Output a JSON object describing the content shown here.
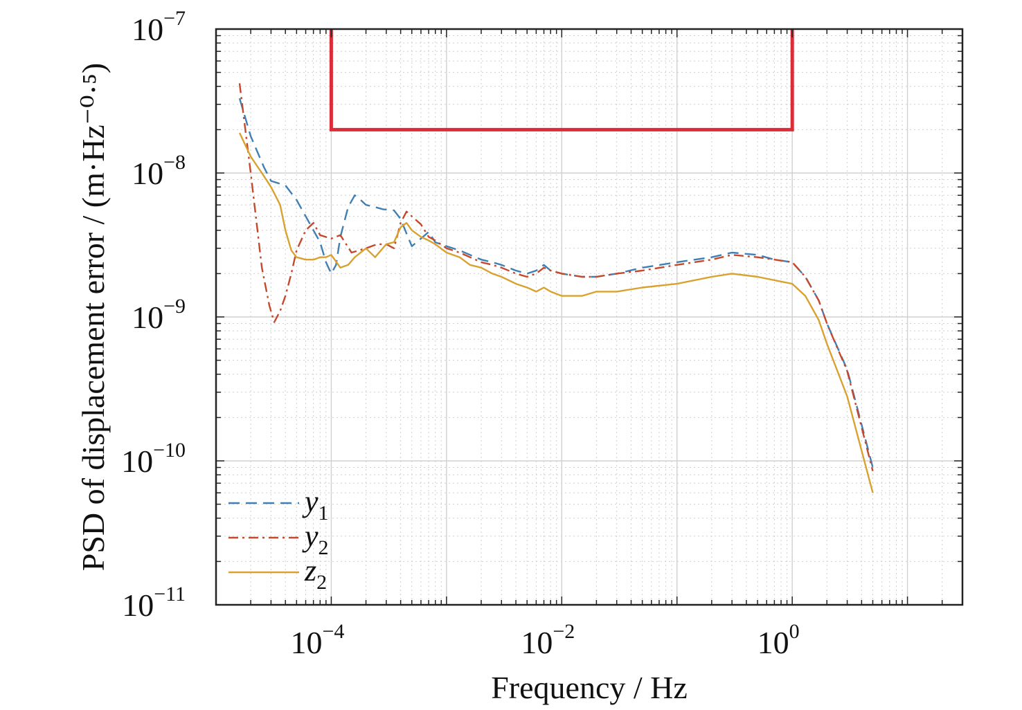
{
  "chart_data": {
    "type": "line",
    "xlabel": "Frequency / Hz",
    "ylabel": "PSD of displacement error / (m·Hz⁻⁰·⁵)",
    "xscale": "log",
    "yscale": "log",
    "xlim": [
      1e-05,
      30
    ],
    "ylim": [
      1e-11,
      1e-07
    ],
    "grid": true,
    "x_ticks": [
      {
        "value": 0.0001,
        "base": "10",
        "exp": "−4"
      },
      {
        "value": 0.01,
        "base": "10",
        "exp": "−2"
      },
      {
        "value": 1,
        "base": "10",
        "exp": "0"
      }
    ],
    "y_ticks": [
      {
        "value": 1e-07,
        "base": "10",
        "exp": "−7"
      },
      {
        "value": 1e-08,
        "base": "10",
        "exp": "−8"
      },
      {
        "value": 1e-09,
        "base": "10",
        "exp": "−9"
      },
      {
        "value": 1e-10,
        "base": "10",
        "exp": "−10"
      },
      {
        "value": 1e-11,
        "base": "10",
        "exp": "−11"
      }
    ],
    "legend": {
      "placement": "bottom-left",
      "entries": [
        {
          "base": "y",
          "sub": "1",
          "color": "#3f7fb4",
          "dash": "dashed"
        },
        {
          "base": "y",
          "sub": "2",
          "color": "#c4492c",
          "dash": "dashdot"
        },
        {
          "base": "z",
          "sub": "2",
          "color": "#d9a12e",
          "dash": "solid"
        }
      ]
    },
    "requirement_line": {
      "color": "#dc2c37",
      "x": [
        0.0001,
        0.0001,
        1,
        1
      ],
      "y": [
        1e-07,
        2e-08,
        2e-08,
        1e-07
      ]
    },
    "series": [
      {
        "key": "y1",
        "color": "#3f7fb4",
        "dash": "dashed",
        "x": [
          1.6e-05,
          2e-05,
          2.6e-05,
          3e-05,
          4e-05,
          5e-05,
          6e-05,
          7e-05,
          8e-05,
          9e-05,
          0.0001,
          0.00011,
          0.00012,
          0.00014,
          0.00016,
          0.00018,
          0.0002,
          0.00024,
          0.00028,
          0.00035,
          0.0004,
          0.00045,
          0.0005,
          0.0006,
          0.0007,
          0.0008,
          0.001,
          0.0013,
          0.0016,
          0.002,
          0.0025,
          0.003,
          0.004,
          0.005,
          0.006,
          0.007,
          0.008,
          0.01,
          0.015,
          0.02,
          0.03,
          0.05,
          0.1,
          0.2,
          0.3,
          0.5,
          0.7,
          1,
          1.3,
          1.7,
          2,
          3,
          5
        ],
        "y": [
          3.3e-08,
          1.8e-08,
          1.1e-08,
          8.8e-09,
          8.2e-09,
          6.5e-09,
          5e-09,
          4e-09,
          3.3e-09,
          2.4e-09,
          2e-09,
          2.3e-09,
          3.6e-09,
          5.8e-09,
          7e-09,
          6.5e-09,
          6e-09,
          5.8e-09,
          5.6e-09,
          5.5e-09,
          4.8e-09,
          3.8e-09,
          3.1e-09,
          3.5e-09,
          3.9e-09,
          3.3e-09,
          3.1e-09,
          2.9e-09,
          2.7e-09,
          2.5e-09,
          2.4e-09,
          2.3e-09,
          2.1e-09,
          2e-09,
          2.1e-09,
          2.3e-09,
          2.1e-09,
          2e-09,
          1.9e-09,
          1.9e-09,
          2e-09,
          2.2e-09,
          2.4e-09,
          2.6e-09,
          2.8e-09,
          2.7e-09,
          2.5e-09,
          2.4e-09,
          1.9e-09,
          1.3e-09,
          9e-10,
          4.3e-10,
          9e-11
        ]
      },
      {
        "key": "y2",
        "color": "#c4492c",
        "dash": "dashdot",
        "x": [
          1.6e-05,
          2e-05,
          2.5e-05,
          2.9e-05,
          3.2e-05,
          3.6e-05,
          4e-05,
          4.5e-05,
          5e-05,
          6e-05,
          7e-05,
          8e-05,
          0.0001,
          0.00012,
          0.00015,
          0.0002,
          0.00025,
          0.0003,
          0.00035,
          0.0004,
          0.00045,
          0.0005,
          0.0006,
          0.0007,
          0.0008,
          0.001,
          0.0013,
          0.0016,
          0.002,
          0.0025,
          0.003,
          0.004,
          0.005,
          0.006,
          0.007,
          0.008,
          0.01,
          0.015,
          0.02,
          0.03,
          0.05,
          0.1,
          0.2,
          0.3,
          0.5,
          0.7,
          1,
          1.3,
          1.7,
          2,
          3,
          5
        ],
        "y": [
          4.2e-08,
          1e-08,
          2.2e-09,
          1.2e-09,
          9.2e-10,
          1.1e-09,
          1.4e-09,
          2e-09,
          2.9e-09,
          4e-09,
          4.5e-09,
          3.7e-09,
          3.5e-09,
          3.7e-09,
          2.8e-09,
          3e-09,
          3.2e-09,
          3.2e-09,
          3e-09,
          4.5e-09,
          5.4e-09,
          5e-09,
          4.4e-09,
          3.6e-09,
          3.4e-09,
          3e-09,
          2.8e-09,
          2.6e-09,
          2.4e-09,
          2.3e-09,
          2.2e-09,
          2e-09,
          1.9e-09,
          2e-09,
          2.2e-09,
          2.1e-09,
          2e-09,
          1.9e-09,
          1.9e-09,
          2e-09,
          2.1e-09,
          2.3e-09,
          2.5e-09,
          2.7e-09,
          2.6e-09,
          2.5e-09,
          2.4e-09,
          1.9e-09,
          1.3e-09,
          9e-10,
          4.2e-10,
          8.5e-11
        ]
      },
      {
        "key": "z2",
        "color": "#d9a12e",
        "dash": "solid",
        "x": [
          1.6e-05,
          2e-05,
          2.5e-05,
          3e-05,
          3.6e-05,
          4e-05,
          4.5e-05,
          5e-05,
          6e-05,
          7e-05,
          8e-05,
          9e-05,
          0.0001,
          0.00012,
          0.00014,
          0.00016,
          0.0002,
          0.00024,
          0.0003,
          0.00035,
          0.0004,
          0.00045,
          0.0005,
          0.0006,
          0.0007,
          0.0008,
          0.001,
          0.0013,
          0.0016,
          0.002,
          0.0025,
          0.003,
          0.004,
          0.005,
          0.006,
          0.007,
          0.008,
          0.01,
          0.015,
          0.02,
          0.03,
          0.05,
          0.1,
          0.2,
          0.3,
          0.5,
          0.7,
          1,
          1.3,
          1.7,
          2,
          3,
          5
        ],
        "y": [
          1.9e-08,
          1.3e-08,
          1e-08,
          8e-09,
          6e-09,
          4e-09,
          2.9e-09,
          2.6e-09,
          2.5e-09,
          2.5e-09,
          2.6e-09,
          2.6e-09,
          2.7e-09,
          2.2e-09,
          2.3e-09,
          2.6e-09,
          3e-09,
          2.6e-09,
          3.2e-09,
          3.3e-09,
          4.2e-09,
          4.5e-09,
          4e-09,
          3.6e-09,
          3.4e-09,
          3.2e-09,
          2.8e-09,
          2.6e-09,
          2.3e-09,
          2.2e-09,
          2e-09,
          1.9e-09,
          1.7e-09,
          1.6e-09,
          1.5e-09,
          1.6e-09,
          1.5e-09,
          1.4e-09,
          1.4e-09,
          1.5e-09,
          1.5e-09,
          1.6e-09,
          1.7e-09,
          1.9e-09,
          2e-09,
          1.9e-09,
          1.8e-09,
          1.7e-09,
          1.4e-09,
          9.5e-10,
          6.5e-10,
          2.8e-10,
          6e-11
        ]
      }
    ]
  }
}
